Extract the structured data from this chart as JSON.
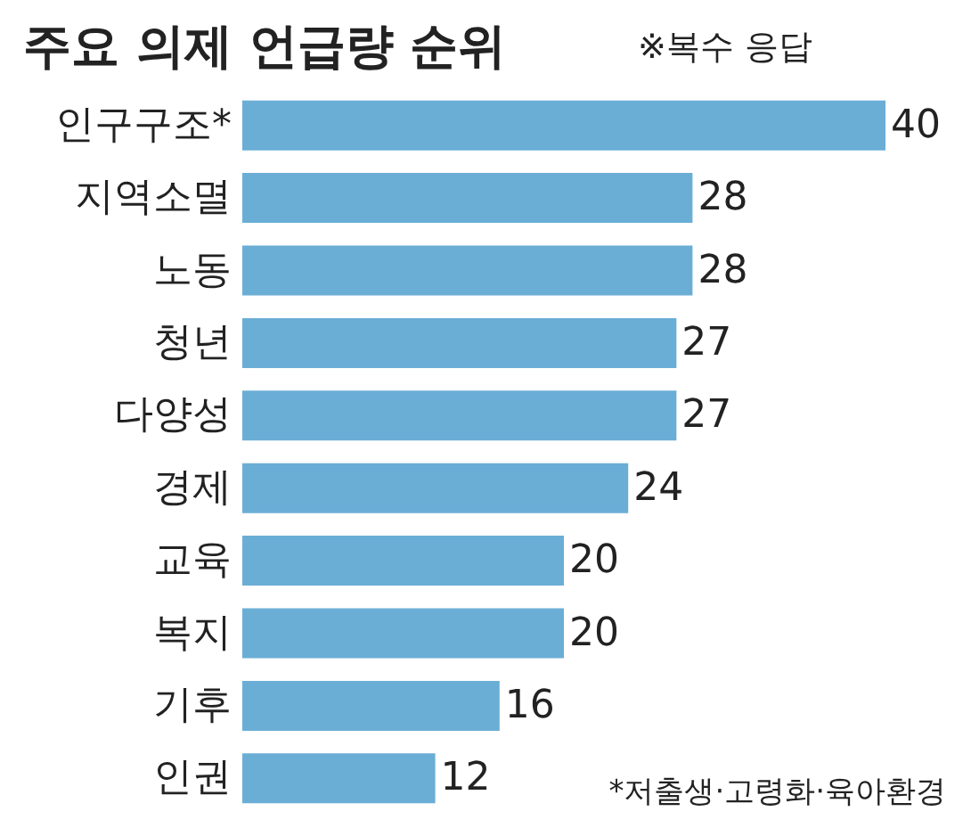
{
  "chart_data": {
    "type": "bar",
    "orientation": "horizontal",
    "title": "주요 의제 언급량 순위",
    "subtitle": "※복수 응답",
    "categories": [
      "인구구조*",
      "지역소멸",
      "노동",
      "청년",
      "다양성",
      "경제",
      "교육",
      "복지",
      "기후",
      "인권"
    ],
    "values": [
      40,
      28,
      28,
      27,
      27,
      24,
      20,
      20,
      16,
      12
    ],
    "color": "#6aaed6",
    "data_labels": true,
    "tick_labels": "y",
    "annotations": [
      "*저출생·고령화·육아환경"
    ]
  }
}
